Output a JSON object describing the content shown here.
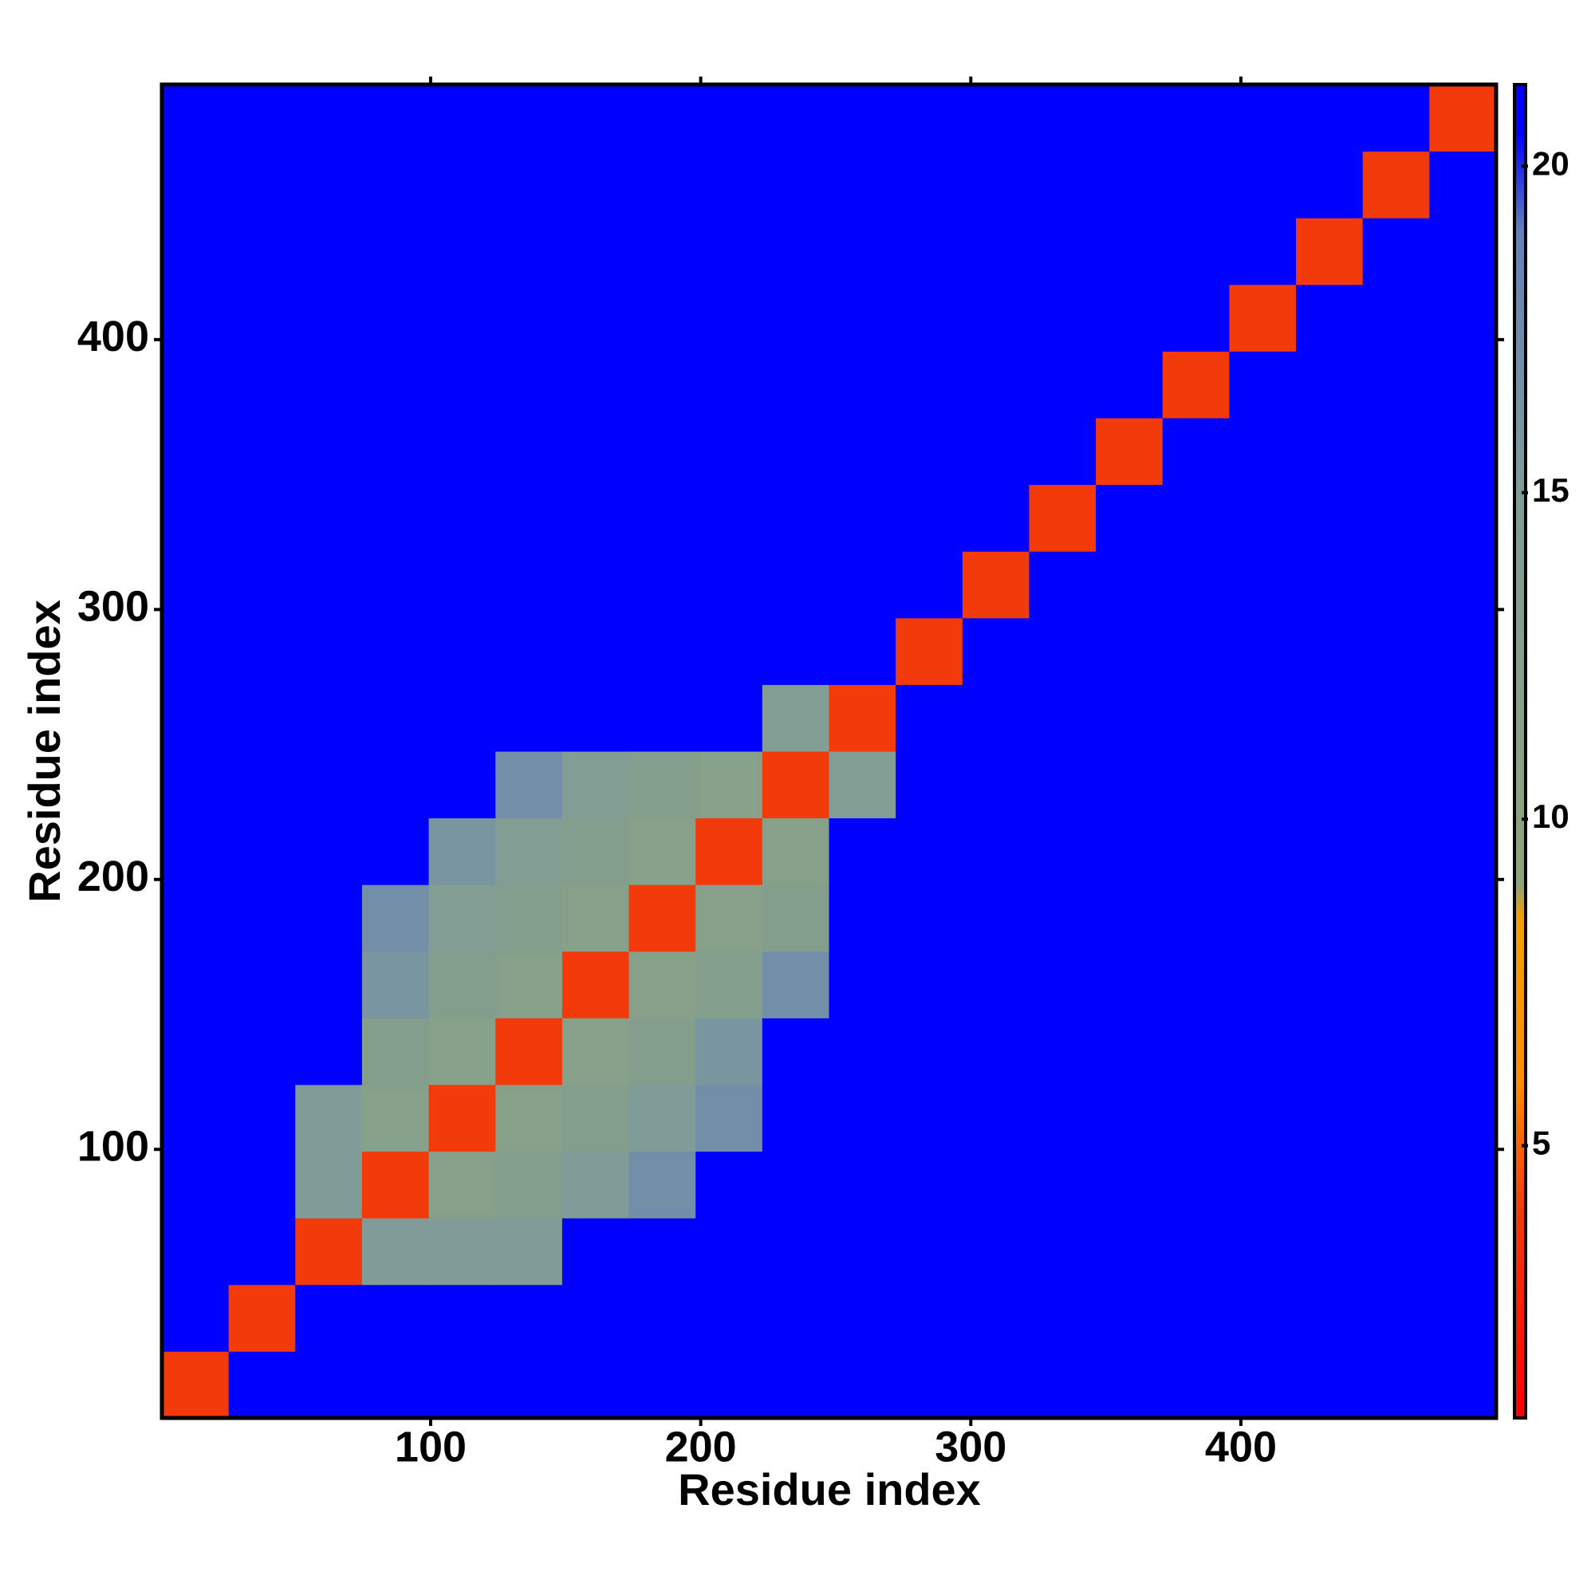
{
  "chart_data": {
    "type": "heatmap",
    "x_label": "Residue index",
    "y_label": "Residue index",
    "xlim": [
      0.5,
      494.5
    ],
    "ylim": [
      0.5,
      494.5
    ],
    "xticks": [
      100,
      200,
      300,
      400
    ],
    "yticks": [
      100,
      200,
      300,
      400
    ],
    "colorbar_lim": [
      0.83,
      21.25
    ],
    "colorbar_ticks": [
      5,
      10,
      15,
      20
    ],
    "colorscale": [
      [
        0.83,
        "#ff0000"
      ],
      [
        4,
        "#f23a0a"
      ],
      [
        6,
        "#ff8c00"
      ],
      [
        8.5,
        "#f0a000"
      ],
      [
        9,
        "#8fa37a"
      ],
      [
        15,
        "#7f9c98"
      ],
      [
        19,
        "#6580b8"
      ],
      [
        20.5,
        "#0000ff"
      ],
      [
        21.25,
        "#0000ff"
      ]
    ],
    "matrix": [
      [
        4,
        21,
        21,
        21,
        21,
        21,
        21,
        21,
        21,
        21,
        21,
        21,
        21,
        21,
        21,
        21,
        21,
        21,
        21,
        21
      ],
      [
        21,
        4,
        21,
        21,
        21,
        21,
        21,
        21,
        21,
        21,
        21,
        21,
        21,
        21,
        21,
        21,
        21,
        21,
        21,
        21
      ],
      [
        21,
        21,
        4,
        15,
        15,
        15,
        21,
        21,
        21,
        21,
        21,
        21,
        21,
        21,
        21,
        21,
        21,
        21,
        21,
        21
      ],
      [
        21,
        21,
        15,
        4,
        12,
        13,
        15,
        17,
        21,
        21,
        21,
        21,
        21,
        21,
        21,
        21,
        21,
        21,
        21,
        21
      ],
      [
        21,
        21,
        15,
        12,
        4,
        12,
        13,
        15,
        17,
        21,
        21,
        21,
        21,
        21,
        21,
        21,
        21,
        21,
        21,
        21
      ],
      [
        21,
        21,
        21,
        13,
        12,
        4,
        12,
        13,
        16,
        21,
        21,
        21,
        21,
        21,
        21,
        21,
        21,
        21,
        21,
        21
      ],
      [
        21,
        21,
        21,
        16,
        13,
        12,
        4,
        12,
        13,
        17,
        21,
        21,
        21,
        21,
        21,
        21,
        21,
        21,
        21,
        21
      ],
      [
        21,
        21,
        21,
        17,
        14,
        13,
        12,
        4,
        12,
        13,
        21,
        21,
        21,
        21,
        21,
        21,
        21,
        21,
        21,
        21
      ],
      [
        21,
        21,
        21,
        21,
        16,
        14,
        13,
        12,
        4,
        12,
        21,
        21,
        21,
        21,
        21,
        21,
        21,
        21,
        21,
        21
      ],
      [
        21,
        21,
        21,
        21,
        21,
        17,
        14,
        13,
        12,
        4,
        14,
        21,
        21,
        21,
        21,
        21,
        21,
        21,
        21,
        21
      ],
      [
        21,
        21,
        21,
        21,
        21,
        21,
        21,
        21,
        21,
        14,
        4,
        21,
        21,
        21,
        21,
        21,
        21,
        21,
        21,
        21
      ],
      [
        21,
        21,
        21,
        21,
        21,
        21,
        21,
        21,
        21,
        21,
        21,
        4,
        21,
        21,
        21,
        21,
        21,
        21,
        21,
        21
      ],
      [
        21,
        21,
        21,
        21,
        21,
        21,
        21,
        21,
        21,
        21,
        21,
        21,
        4,
        21,
        21,
        21,
        21,
        21,
        21,
        21
      ],
      [
        21,
        21,
        21,
        21,
        21,
        21,
        21,
        21,
        21,
        21,
        21,
        21,
        21,
        4,
        21,
        21,
        21,
        21,
        21,
        21
      ],
      [
        21,
        21,
        21,
        21,
        21,
        21,
        21,
        21,
        21,
        21,
        21,
        21,
        21,
        21,
        4,
        21,
        21,
        21,
        21,
        21
      ],
      [
        21,
        21,
        21,
        21,
        21,
        21,
        21,
        21,
        21,
        21,
        21,
        21,
        21,
        21,
        21,
        4,
        21,
        21,
        21,
        21
      ],
      [
        21,
        21,
        21,
        21,
        21,
        21,
        21,
        21,
        21,
        21,
        21,
        21,
        21,
        21,
        21,
        21,
        4,
        21,
        21,
        21
      ],
      [
        21,
        21,
        21,
        21,
        21,
        21,
        21,
        21,
        21,
        21,
        21,
        21,
        21,
        21,
        21,
        21,
        21,
        4,
        21,
        21
      ],
      [
        21,
        21,
        21,
        21,
        21,
        21,
        21,
        21,
        21,
        21,
        21,
        21,
        21,
        21,
        21,
        21,
        21,
        21,
        4,
        21
      ],
      [
        21,
        21,
        21,
        21,
        21,
        21,
        21,
        21,
        21,
        21,
        21,
        21,
        21,
        21,
        21,
        21,
        21,
        21,
        21,
        4
      ]
    ]
  }
}
